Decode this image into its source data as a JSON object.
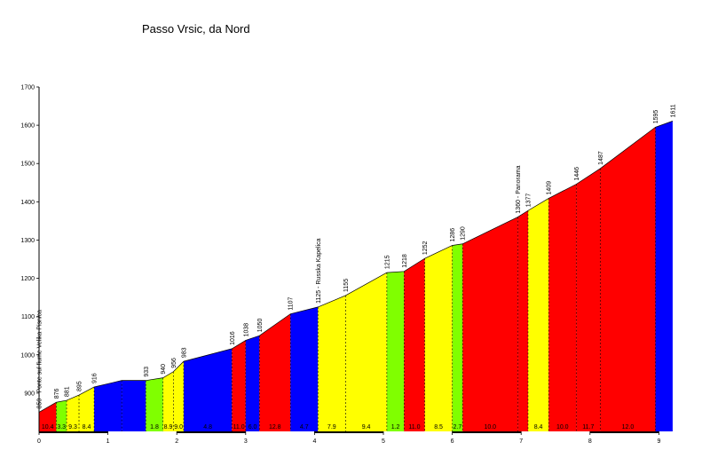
{
  "chart_data": {
    "type": "area",
    "title": "Passo Vrsic, da Nord",
    "xlabel": "",
    "ylabel": "",
    "xlim": [
      0,
      9.7
    ],
    "ylim": [
      800,
      1700
    ],
    "yticks": [
      900,
      1000,
      1100,
      1200,
      1300,
      1400,
      1500,
      1600,
      1700
    ],
    "xticks": [
      0,
      1,
      2,
      3,
      4,
      5,
      6,
      7,
      8,
      9
    ],
    "grid": false,
    "colors": {
      "blue": "#0000ff",
      "green": "#80ff00",
      "yellow": "#ffff00",
      "red": "#ff0000",
      "sky": "#000000"
    },
    "points": [
      {
        "x": 0.0,
        "y": 850,
        "label": "850 - Ponte sul fiume Velika Pisnica"
      },
      {
        "x": 0.25,
        "y": 876,
        "label": "876"
      },
      {
        "x": 0.4,
        "y": 881,
        "label": "881"
      },
      {
        "x": 0.58,
        "y": 895,
        "label": "895"
      },
      {
        "x": 0.8,
        "y": 916,
        "label": "916"
      },
      {
        "x": 1.2,
        "y": 933,
        "label": ""
      },
      {
        "x": 1.55,
        "y": 933,
        "label": "933"
      },
      {
        "x": 1.8,
        "y": 940,
        "label": "940"
      },
      {
        "x": 1.95,
        "y": 956,
        "label": "956"
      },
      {
        "x": 2.1,
        "y": 983,
        "label": "983"
      },
      {
        "x": 2.8,
        "y": 1016,
        "label": "1016"
      },
      {
        "x": 3.0,
        "y": 1038,
        "label": "1038"
      },
      {
        "x": 3.2,
        "y": 1050,
        "label": "1050"
      },
      {
        "x": 3.65,
        "y": 1107,
        "label": "1107"
      },
      {
        "x": 4.05,
        "y": 1125,
        "label": "1125 - Russka Kapelica"
      },
      {
        "x": 4.45,
        "y": 1155,
        "label": "1155"
      },
      {
        "x": 5.05,
        "y": 1215,
        "label": "1215"
      },
      {
        "x": 5.3,
        "y": 1218,
        "label": "1218"
      },
      {
        "x": 5.6,
        "y": 1252,
        "label": "1252"
      },
      {
        "x": 6.0,
        "y": 1286,
        "label": "1286"
      },
      {
        "x": 6.15,
        "y": 1290,
        "label": "1290"
      },
      {
        "x": 6.95,
        "y": 1360,
        "label": "1360 - Panorama"
      },
      {
        "x": 7.1,
        "y": 1377,
        "label": "1377"
      },
      {
        "x": 7.4,
        "y": 1409,
        "label": "1409"
      },
      {
        "x": 7.8,
        "y": 1446,
        "label": "1446"
      },
      {
        "x": 8.15,
        "y": 1487,
        "label": "1487"
      },
      {
        "x": 8.95,
        "y": 1595,
        "label": "1595"
      },
      {
        "x": 9.2,
        "y": 1611,
        "label": "1611"
      }
    ],
    "segments": [
      {
        "color": "red",
        "grade": "10.4"
      },
      {
        "color": "green",
        "grade": "3.3"
      },
      {
        "color": "yellow",
        "grade": "9.3"
      },
      {
        "color": "yellow",
        "grade": "8.4"
      },
      {
        "color": "blue",
        "grade": ""
      },
      {
        "color": "blue",
        "grade": ""
      },
      {
        "color": "green",
        "grade": "1.8"
      },
      {
        "color": "yellow",
        "grade": "8.9"
      },
      {
        "color": "yellow",
        "grade": "9.0"
      },
      {
        "color": "blue",
        "grade": "4.8"
      },
      {
        "color": "red",
        "grade": "11.0"
      },
      {
        "color": "blue",
        "grade": "6.0"
      },
      {
        "color": "red",
        "grade": "12.8"
      },
      {
        "color": "blue",
        "grade": "4.7"
      },
      {
        "color": "yellow",
        "grade": "7.9"
      },
      {
        "color": "yellow",
        "grade": "9.4"
      },
      {
        "color": "green",
        "grade": "1.2"
      },
      {
        "color": "red",
        "grade": "11.0"
      },
      {
        "color": "yellow",
        "grade": "8.5"
      },
      {
        "color": "green",
        "grade": "2.7"
      },
      {
        "color": "red",
        "grade": "10.0"
      },
      {
        "color": "red",
        "grade": ""
      },
      {
        "color": "yellow",
        "grade": "8.4"
      },
      {
        "color": "red",
        "grade": "10.0"
      },
      {
        "color": "red",
        "grade": "11.7"
      },
      {
        "color": "red",
        "grade": "12.0"
      },
      {
        "color": "blue",
        "grade": ""
      }
    ]
  }
}
